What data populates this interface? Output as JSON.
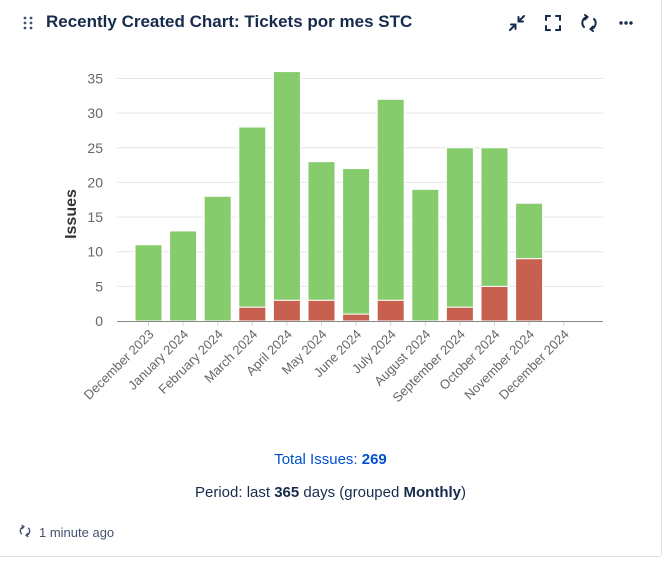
{
  "header": {
    "title": "Recently Created Chart: Tickets por mes STC",
    "icons": [
      "drag-handle-icon",
      "minimize-icon",
      "fullscreen-icon",
      "refresh-icon",
      "more-icon"
    ]
  },
  "chart_data": {
    "type": "bar",
    "stacked": true,
    "categories": [
      "December 2023",
      "January 2024",
      "February 2024",
      "March 2024",
      "April 2024",
      "May 2024",
      "June 2024",
      "July 2024",
      "August 2024",
      "September 2024",
      "October 2024",
      "November 2024",
      "December 2024"
    ],
    "series": [
      {
        "name": "",
        "color": "#c8604f",
        "values": [
          0,
          0,
          0,
          2,
          3,
          3,
          1,
          3,
          0,
          2,
          5,
          9,
          0
        ]
      },
      {
        "name": "",
        "color": "#86cc6d",
        "values": [
          11,
          13,
          18,
          26,
          33,
          20,
          21,
          29,
          19,
          23,
          20,
          8,
          0
        ]
      }
    ],
    "totals": [
      11,
      13,
      18,
      28,
      36,
      23,
      22,
      32,
      19,
      25,
      25,
      17,
      0
    ],
    "ylabel": "Issues",
    "xlabel": "",
    "ylim": [
      0,
      35
    ],
    "yticks": [
      0,
      5,
      10,
      15,
      20,
      25,
      30,
      35
    ],
    "grid": true
  },
  "summary": {
    "total_label": "Total Issues:",
    "total_value": "269",
    "period_prefix": "Period: last",
    "period_days": "365",
    "period_middle": "days (grouped",
    "period_group": "Monthly",
    "period_suffix": ")"
  },
  "footer": {
    "updated_text": "1 minute ago"
  }
}
